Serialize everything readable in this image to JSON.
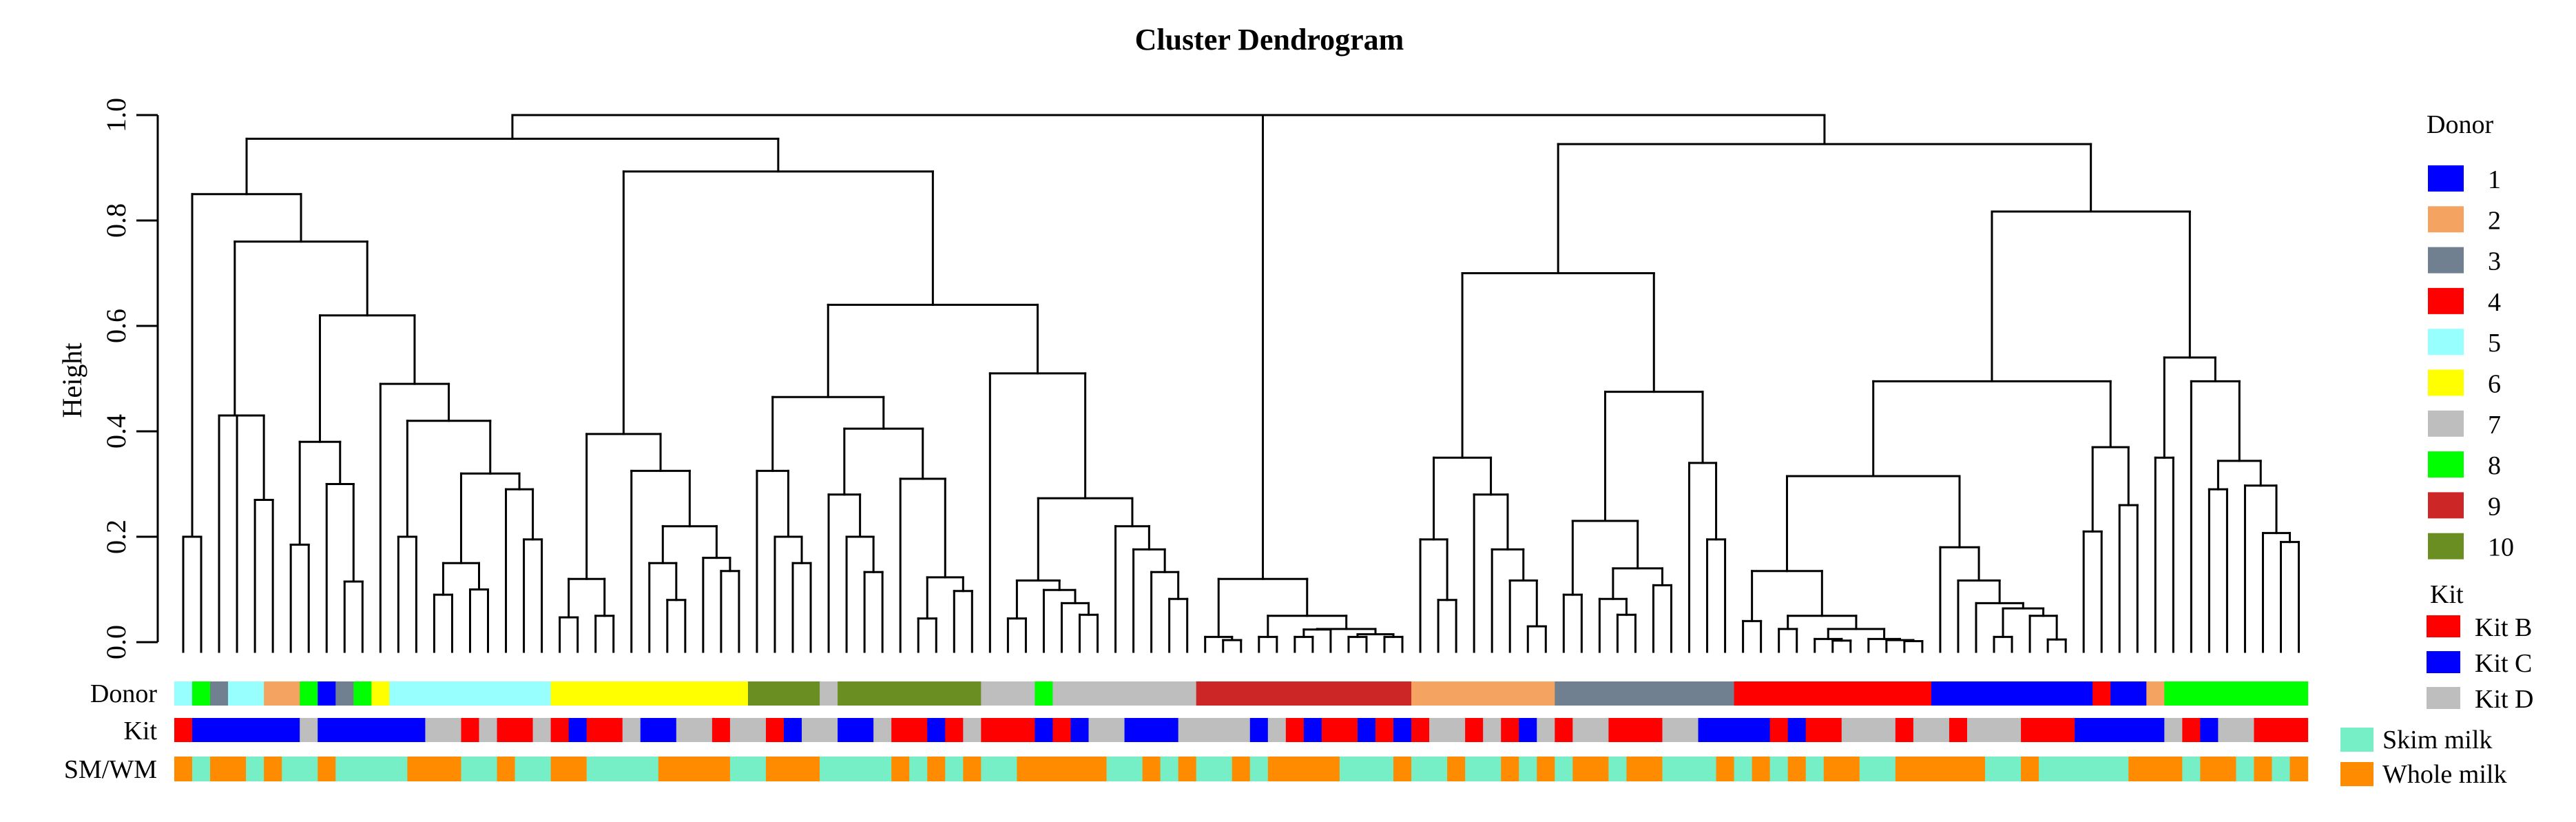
{
  "chart_data": {
    "type": "dendrogram",
    "title": "Cluster Dendrogram",
    "ylabel": "Height",
    "ylim": [
      0,
      1
    ],
    "yticks": [
      "0.0",
      "0.2",
      "0.4",
      "0.6",
      "0.8",
      "1.0"
    ],
    "tree": [
      1.0,
      [
        0.955,
        [
          0.85,
          [
            0.2,
            0,
            1
          ],
          [
            0.76,
            [
              0.43,
              2,
              [
                0.43,
                3,
                [
                  0.27,
                  4,
                  5
                ]
              ]
            ],
            [
              0.62,
              [
                0.38,
                [
                  0.185,
                  6,
                  7
                ],
                [
                  0.3,
                  8,
                  [
                    0.115,
                    9,
                    10
                  ]
                ]
              ],
              [
                0.49,
                11,
                [
                  0.42,
                  [
                    0.2,
                    12,
                    13
                  ],
                  [
                    0.32,
                    [
                      0.15,
                      [
                        0.09,
                        14,
                        15
                      ],
                      [
                        0.1,
                        16,
                        17
                      ]
                    ],
                    [
                      0.29,
                      18,
                      [
                        0.195,
                        19,
                        20
                      ]
                    ]
                  ]
                ]
              ]
            ]
          ]
        ],
        [
          0.893,
          [
            0.395,
            [
              0.12,
              [
                0.047,
                21,
                22
              ],
              [
                0.05,
                23,
                24
              ]
            ],
            [
              0.325,
              25,
              [
                0.22,
                [
                  0.15,
                  26,
                  [
                    0.08,
                    27,
                    28
                  ]
                ],
                [
                  0.16,
                  29,
                  [
                    0.135,
                    30,
                    31
                  ]
                ]
              ]
            ]
          ],
          [
            0.64,
            [
              0.465,
              [
                0.325,
                32,
                [
                  0.2,
                  33,
                  [
                    0.15,
                    34,
                    35
                  ]
                ]
              ],
              [
                0.405,
                [
                  0.28,
                  36,
                  [
                    0.2,
                    37,
                    [
                      0.133,
                      38,
                      39
                    ]
                  ]
                ],
                [
                  0.31,
                  40,
                  [
                    0.123,
                    [
                      0.045,
                      41,
                      42
                    ],
                    [
                      0.097,
                      43,
                      44
                    ]
                  ]
                ]
              ]
            ],
            [
              0.51,
              45,
              [
                0.273,
                [
                  0.117,
                  [
                    0.045,
                    46,
                    47
                  ],
                  [
                    0.099,
                    48,
                    [
                      0.074,
                      49,
                      [
                        0.052,
                        50,
                        51
                      ]
                    ]
                  ]
                ],
                [
                  0.22,
                  52,
                  [
                    0.176,
                    53,
                    [
                      0.133,
                      54,
                      [
                        0.082,
                        55,
                        56
                      ]
                    ]
                  ]
                ]
              ]
            ]
          ]
        ]
      ],
      [
        0.12,
        [
          0.01,
          57,
          [
            0.004,
            58,
            59
          ]
        ],
        [
          0.05,
          [
            0.01,
            60,
            61
          ],
          [
            0.025,
            [
              0.024,
              [
                0.01,
                62,
                63
              ],
              64
            ],
            [
              0.015,
              [
                0.01,
                65,
                66
              ],
              [
                0.01,
                67,
                68
              ]
            ]
          ]
        ]
      ],
      [
        0.945,
        [
          0.7,
          [
            0.35,
            [
              0.195,
              69,
              [
                0.08,
                70,
                71
              ]
            ],
            [
              0.28,
              72,
              [
                0.176,
                73,
                [
                  0.117,
                  74,
                  [
                    0.03,
                    75,
                    76
                  ]
                ]
              ]
            ]
          ],
          [
            0.475,
            [
              0.23,
              [
                0.09,
                77,
                78
              ],
              [
                0.14,
                [
                  0.082,
                  79,
                  [
                    0.052,
                    80,
                    81
                  ]
                ],
                [
                  0.108,
                  82,
                  83
                ]
              ]
            ],
            [
              0.34,
              84,
              [
                0.195,
                85,
                86
              ]
            ]
          ]
        ],
        [
          0.817,
          [
            0.495,
            [
              0.315,
              [
                0.135,
                [
                  0.04,
                  87,
                  88
                ],
                [
                  0.05,
                  [
                    0.025,
                    89,
                    90
                  ],
                  [
                    0.025,
                    [
                      0.006,
                      91,
                      [
                        0.003,
                        92,
                        93
                      ]
                    ],
                    [
                      0.006,
                      94,
                      [
                        0.004,
                        95,
                        [
                          0.002,
                          96,
                          97
                        ]
                      ]
                    ]
                  ]
                ]
              ],
              [
                0.18,
                98,
                [
                  0.117,
                  99,
                  [
                    0.074,
                    100,
                    [
                      0.064,
                      [
                        0.01,
                        101,
                        102
                      ],
                      [
                        0.05,
                        103,
                        [
                          0.005,
                          104,
                          105
                        ]
                      ]
                    ]
                  ]
                ]
              ]
            ],
            [
              0.37,
              [
                0.21,
                106,
                107
              ],
              [
                0.26,
                108,
                109
              ]
            ]
          ],
          [
            0.54,
            [
              0.35,
              110,
              111
            ],
            [
              0.495,
              112,
              [
                0.344,
                [
                  0.29,
                  113,
                  114
                ],
                [
                  0.297,
                  115,
                  [
                    0.207,
                    116,
                    [
                      0.19,
                      117,
                      118
                    ]
                  ]
                ]
              ]
            ]
          ]
        ]
      ]
    ],
    "annotation_rows": {
      "donor": {
        "label": "Donor",
        "values": [
          5,
          8,
          3,
          5,
          5,
          2,
          2,
          8,
          1,
          3,
          8,
          6,
          5,
          5,
          5,
          5,
          5,
          5,
          5,
          5,
          5,
          6,
          6,
          6,
          6,
          6,
          6,
          6,
          6,
          6,
          6,
          6,
          10,
          10,
          10,
          10,
          7,
          10,
          10,
          10,
          10,
          10,
          10,
          10,
          10,
          7,
          7,
          7,
          8,
          7,
          7,
          7,
          7,
          7,
          7,
          7,
          7,
          9,
          9,
          9,
          9,
          9,
          9,
          9,
          9,
          9,
          9,
          9,
          9,
          2,
          2,
          2,
          2,
          2,
          2,
          2,
          2,
          3,
          3,
          3,
          3,
          3,
          3,
          3,
          3,
          3,
          3,
          4,
          4,
          4,
          4,
          4,
          4,
          4,
          4,
          4,
          4,
          4,
          1,
          1,
          1,
          1,
          1,
          1,
          1,
          1,
          1,
          4,
          1,
          1,
          2,
          8,
          8,
          8,
          8,
          8,
          8,
          8,
          8
        ]
      },
      "kit": {
        "label": "Kit",
        "values": "BCCCCCCDCCCCCCDDBDBBDBCBBDCCDDBDDBCDDCCDBBCBDBBBCBCDDCCCDDDDCDBCBBCBCBDDBDBCDBDDBBBDDCCCCBCBBDDDBDDBDDDBBBCCCCCDBCDDBBB"
      },
      "milk": {
        "label": "SM/WM",
        "values": "WSWWSWSSWSSSSWWWSSWSSWWSSSSWWWWSSWWWSSSSWSWSWSSWWWWWSSWSWSSWSWWWWSSSWSSWSSWSWSWWSWWSSSWSWSWSWWSSWWWWWSSWSSSSSWWWSWWSWSW"
      }
    }
  },
  "legend": {
    "donor": {
      "title": "Donor",
      "items": [
        {
          "key": 1,
          "label": "1",
          "color": "#0000FF"
        },
        {
          "key": 2,
          "label": "2",
          "color": "#F4A460"
        },
        {
          "key": 3,
          "label": "3",
          "color": "#708090"
        },
        {
          "key": 4,
          "label": "4",
          "color": "#FF0000"
        },
        {
          "key": 5,
          "label": "5",
          "color": "#98FFFF"
        },
        {
          "key": 6,
          "label": "6",
          "color": "#FFFF00"
        },
        {
          "key": 7,
          "label": "7",
          "color": "#BEBEBE"
        },
        {
          "key": 8,
          "label": "8",
          "color": "#00FF00"
        },
        {
          "key": 9,
          "label": "9",
          "color": "#CD2626"
        },
        {
          "key": 10,
          "label": "10",
          "color": "#6B8E23"
        }
      ]
    },
    "kit": {
      "title": "Kit",
      "items": [
        {
          "key": "B",
          "label": "Kit B",
          "color": "#FF0000"
        },
        {
          "key": "C",
          "label": "Kit C",
          "color": "#0000FF"
        },
        {
          "key": "D",
          "label": "Kit D",
          "color": "#BEBEBE"
        }
      ]
    },
    "milk": {
      "items": [
        {
          "key": "S",
          "label": "Skim milk",
          "color": "#76EEC6"
        },
        {
          "key": "W",
          "label": "Whole milk",
          "color": "#FF8C00"
        }
      ]
    }
  }
}
